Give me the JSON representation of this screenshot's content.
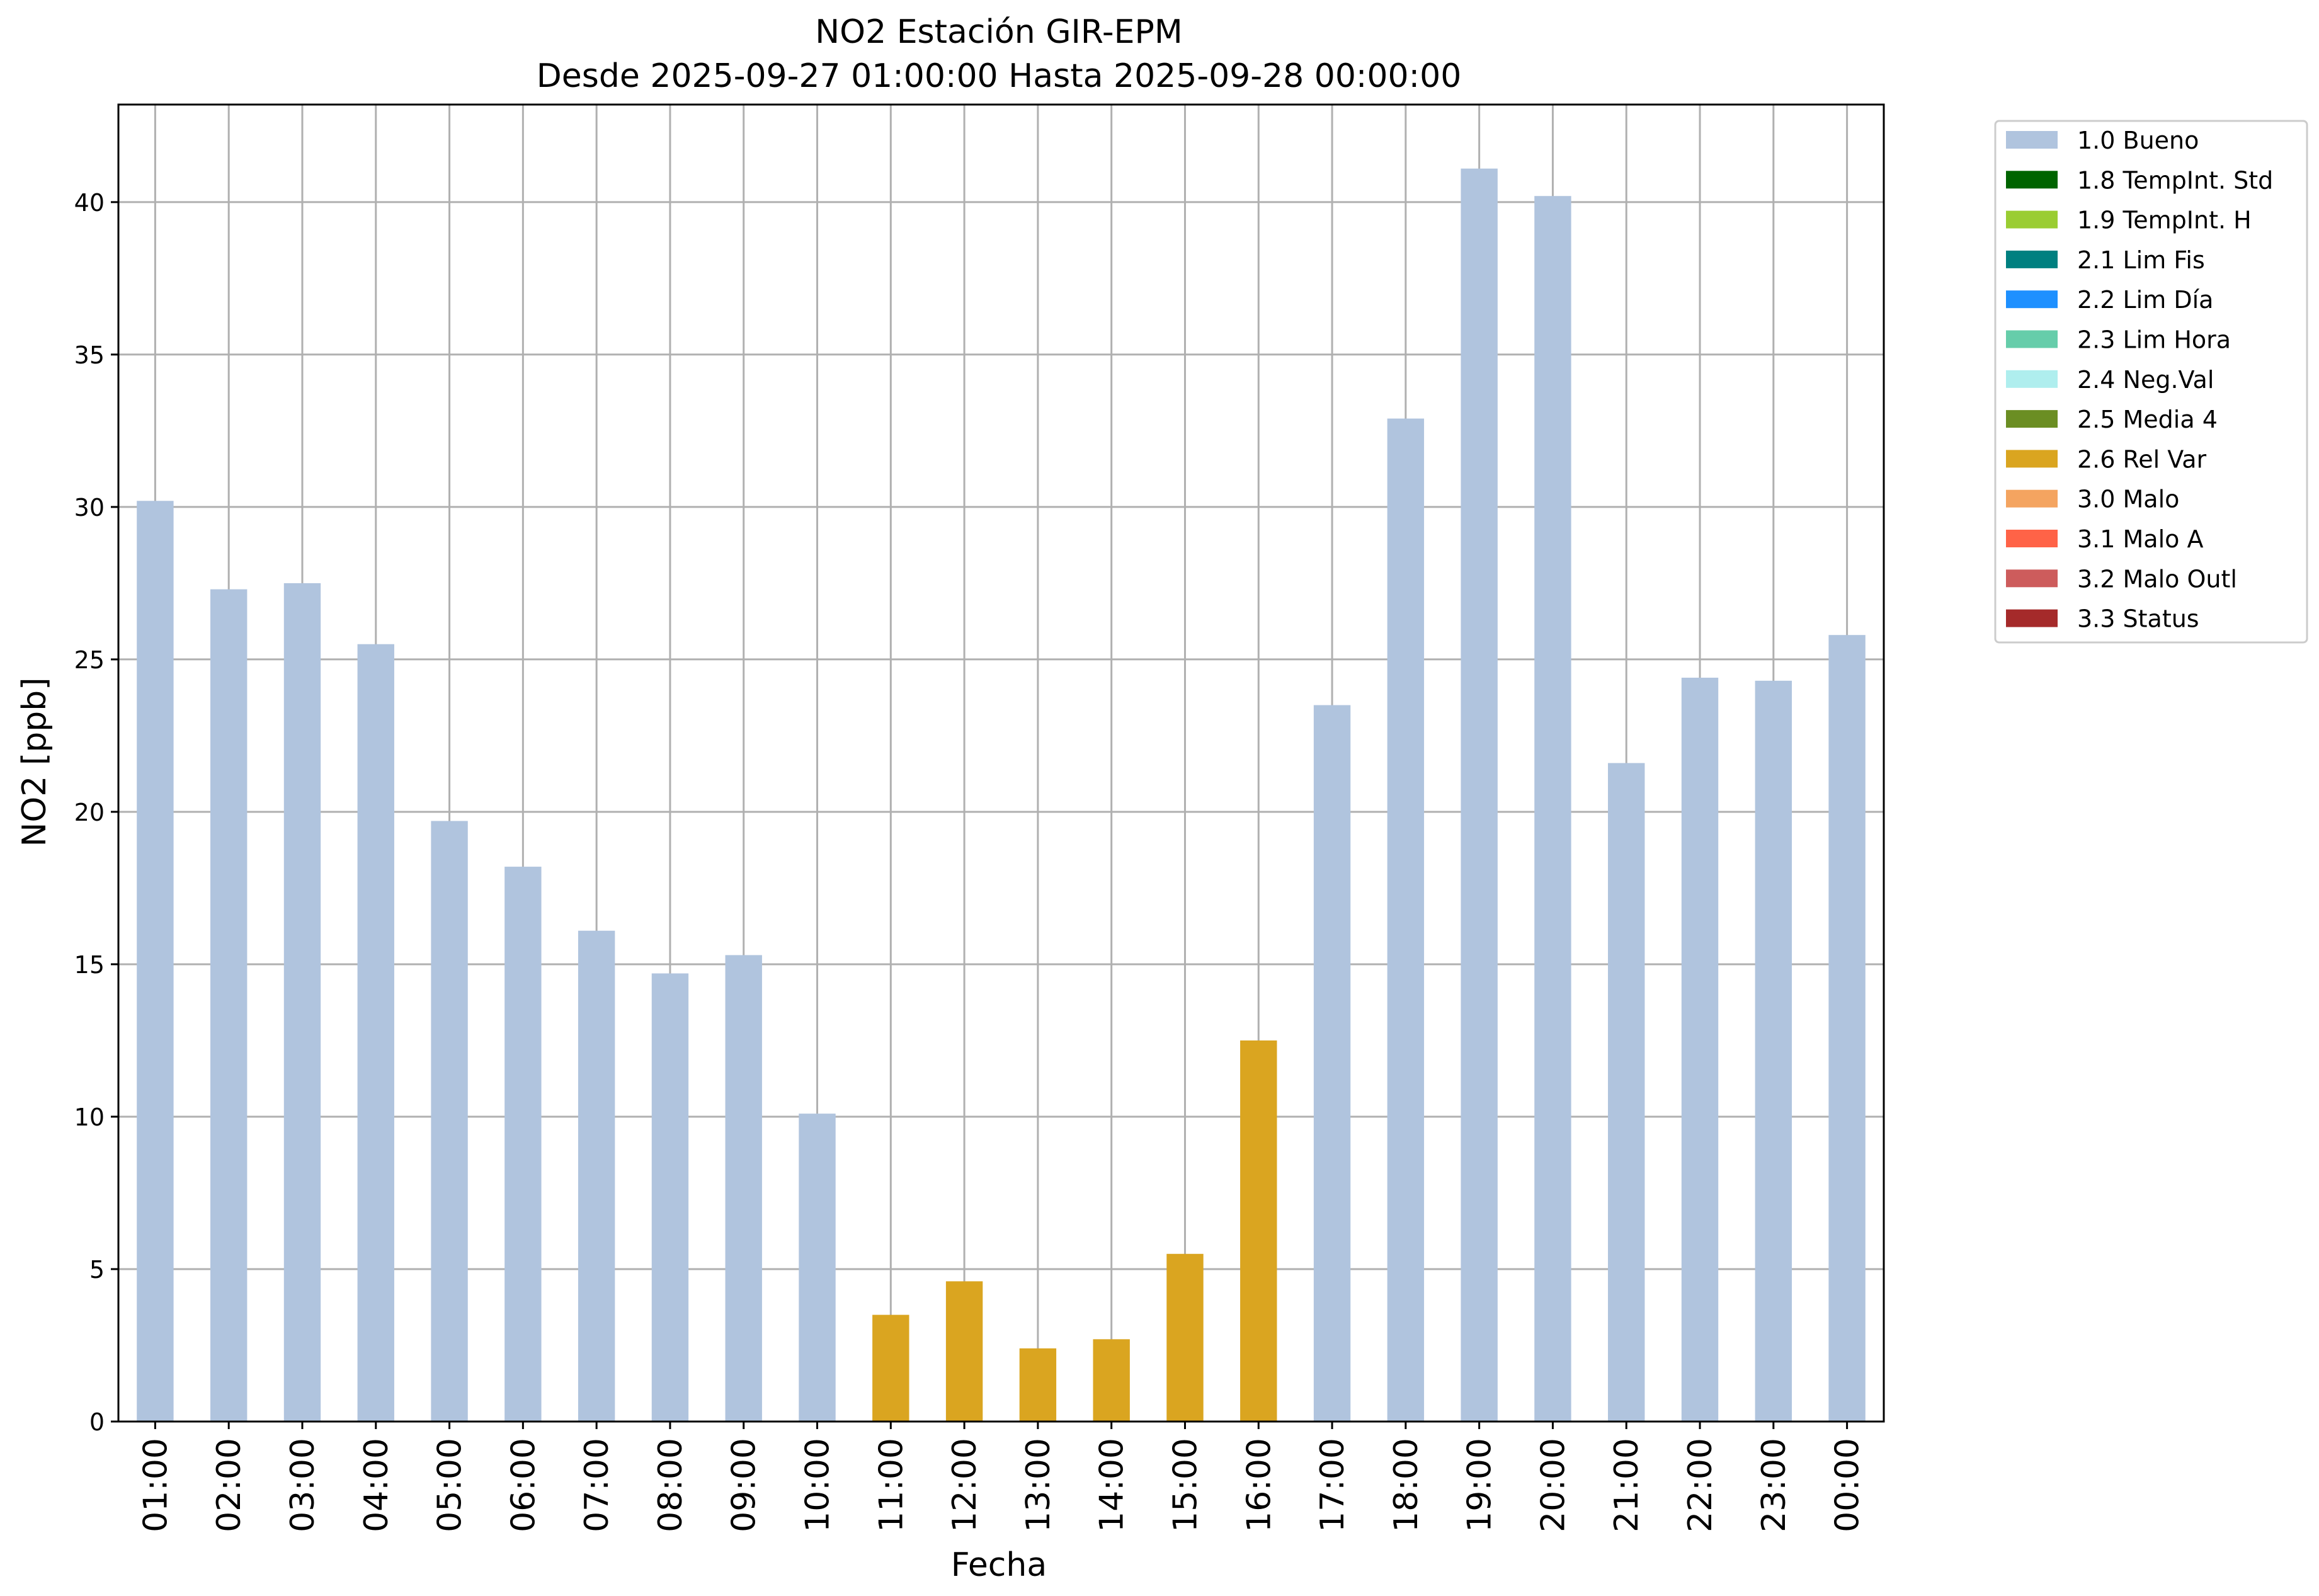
{
  "chart_data": {
    "type": "bar",
    "title": "NO2 Estación GIR-EPM",
    "subtitle": "Desde 2025-09-27 01:00:00 Hasta 2025-09-28 00:00:00",
    "xlabel": "Fecha",
    "ylabel": "NO2 [ppb]",
    "ylim": [
      0,
      43.2
    ],
    "yticks": [
      "0",
      "5",
      "10",
      "15",
      "20",
      "25",
      "30",
      "35",
      "40"
    ],
    "grid": true,
    "legend_position": "outside-top-right",
    "categories": [
      "01:00",
      "02:00",
      "03:00",
      "04:00",
      "05:00",
      "06:00",
      "07:00",
      "08:00",
      "09:00",
      "10:00",
      "11:00",
      "12:00",
      "13:00",
      "14:00",
      "15:00",
      "16:00",
      "17:00",
      "18:00",
      "19:00",
      "20:00",
      "21:00",
      "22:00",
      "23:00",
      "00:00"
    ],
    "values": [
      30.2,
      27.3,
      27.5,
      25.5,
      19.7,
      18.2,
      16.1,
      14.7,
      15.3,
      10.1,
      3.5,
      4.6,
      2.4,
      2.7,
      5.5,
      12.5,
      23.5,
      32.9,
      41.1,
      40.2,
      21.6,
      24.4,
      24.3,
      25.8
    ],
    "flags": [
      "1.0 Bueno",
      "1.0 Bueno",
      "1.0 Bueno",
      "1.0 Bueno",
      "1.0 Bueno",
      "1.0 Bueno",
      "1.0 Bueno",
      "1.0 Bueno",
      "1.0 Bueno",
      "1.0 Bueno",
      "2.6 Rel Var",
      "2.6 Rel Var",
      "2.6 Rel Var",
      "2.6 Rel Var",
      "2.6 Rel Var",
      "2.6 Rel Var",
      "1.0 Bueno",
      "1.0 Bueno",
      "1.0 Bueno",
      "1.0 Bueno",
      "1.0 Bueno",
      "1.0 Bueno",
      "1.0 Bueno",
      "1.0 Bueno"
    ],
    "legend": [
      {
        "label": "1.0 Bueno",
        "color": "#b0c4de"
      },
      {
        "label": "1.8 TempInt. Std",
        "color": "#006400"
      },
      {
        "label": "1.9 TempInt. H",
        "color": "#9acd32"
      },
      {
        "label": "2.1 Lim Fis",
        "color": "#008080"
      },
      {
        "label": "2.2 Lim Día",
        "color": "#1e90ff"
      },
      {
        "label": "2.3 Lim Hora",
        "color": "#66cdaa"
      },
      {
        "label": "2.4 Neg.Val",
        "color": "#afeeee"
      },
      {
        "label": "2.5 Media 4",
        "color": "#6b8e23"
      },
      {
        "label": "2.6 Rel Var",
        "color": "#daa520"
      },
      {
        "label": "3.0 Malo",
        "color": "#f4a460"
      },
      {
        "label": "3.1 Malo A",
        "color": "#ff6347"
      },
      {
        "label": "3.2 Malo Outl",
        "color": "#cd5c5c"
      },
      {
        "label": "3.3 Status",
        "color": "#a52a2a"
      }
    ]
  }
}
